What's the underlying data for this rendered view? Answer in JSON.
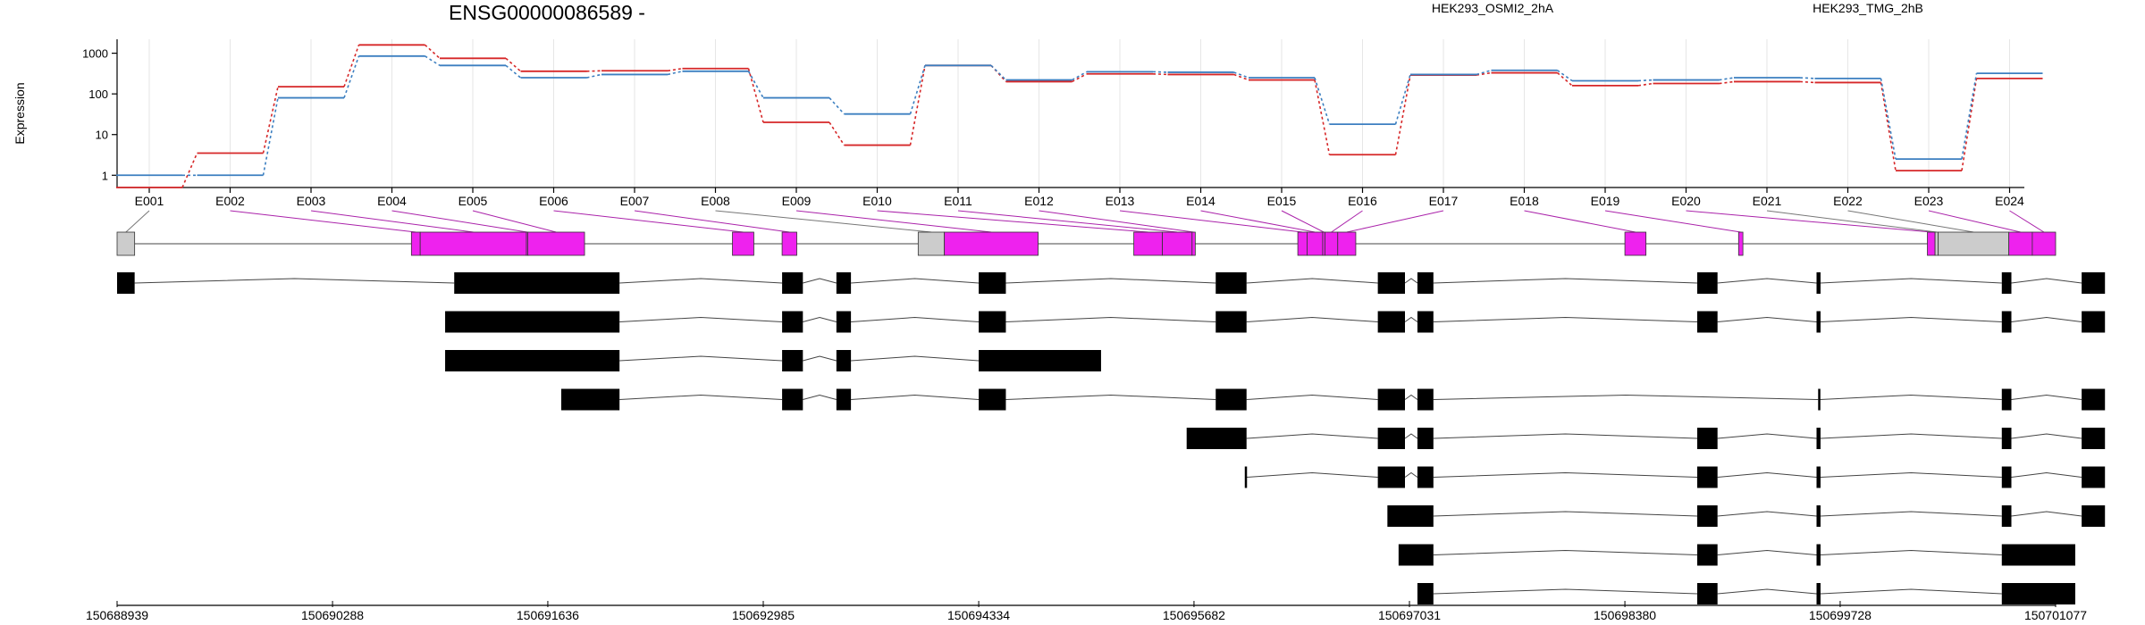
{
  "chart_data": {
    "type": "line",
    "title": "ENSG00000086589 -",
    "ylabel": "Expression",
    "yscale": "log",
    "ylim": [
      0.5,
      2200
    ],
    "y_ticks": [
      "1",
      "10",
      "100",
      "1000"
    ],
    "y_tick_values": [
      1,
      10,
      100,
      1000
    ],
    "grid": "vertical, at exon centres",
    "legend_placement": "top-right",
    "colors": {
      "series_a": "#d62728",
      "series_b": "#3c7fc0",
      "exon_highlight": "#ee22ee",
      "exon_other": "#cccccc",
      "transcript_block": "#000000",
      "connector": "#aa22aa"
    },
    "categories": [
      "E001",
      "E002",
      "E003",
      "E004",
      "E005",
      "E006",
      "E007",
      "E008",
      "E009",
      "E010",
      "E011",
      "E012",
      "E013",
      "E014",
      "E015",
      "E016",
      "E017",
      "E018",
      "E019",
      "E020",
      "E021",
      "E022",
      "E023",
      "E024"
    ],
    "series": [
      {
        "name": "HEK293_OSMI2_2hA",
        "color": "#d62728",
        "values": [
          0.5,
          3.5,
          150,
          1600,
          750,
          360,
          370,
          420,
          20,
          5.5,
          500,
          200,
          310,
          300,
          220,
          3.2,
          290,
          330,
          160,
          180,
          200,
          190,
          1.3,
          240
        ]
      },
      {
        "name": "HEK293_TMG_2hB",
        "color": "#3c7fc0",
        "values": [
          1.0,
          1.0,
          80,
          850,
          500,
          250,
          300,
          360,
          80,
          32,
          500,
          220,
          350,
          340,
          250,
          18,
          300,
          380,
          210,
          220,
          250,
          240,
          2.5,
          320
        ]
      }
    ],
    "genomic_coordinates": [
      "150688939",
      "150690288",
      "150691636",
      "150692985",
      "150694334",
      "150695682",
      "150697031",
      "150698380",
      "150699728",
      "150701077"
    ],
    "gene_start": 150688939,
    "gene_end": 150701077,
    "exons": [
      {
        "id": "E001",
        "start": 150688939,
        "end": 150689049,
        "highlight": false
      },
      {
        "id": "E002",
        "start": 150690782,
        "end": 150690837,
        "highlight": true
      },
      {
        "id": "E003",
        "start": 150690837,
        "end": 150691502,
        "highlight": true
      },
      {
        "id": "E004",
        "start": 150691502,
        "end": 150691510,
        "highlight": true
      },
      {
        "id": "E005",
        "start": 150691510,
        "end": 150691866,
        "highlight": true
      },
      {
        "id": "E006",
        "start": 150692792,
        "end": 150692926,
        "highlight": true
      },
      {
        "id": "E007",
        "start": 150693103,
        "end": 150693195,
        "highlight": true
      },
      {
        "id": "E008",
        "start": 150693955,
        "end": 150694119,
        "highlight": false
      },
      {
        "id": "E009",
        "start": 150694119,
        "end": 150694706,
        "highlight": true
      },
      {
        "id": "E010",
        "start": 150695305,
        "end": 150695484,
        "highlight": true
      },
      {
        "id": "E011",
        "start": 150695484,
        "end": 150695670,
        "highlight": true
      },
      {
        "id": "E012",
        "start": 150695670,
        "end": 150695690,
        "highlight": true
      },
      {
        "id": "E013",
        "start": 150696332,
        "end": 150696390,
        "highlight": true
      },
      {
        "id": "E014",
        "start": 150696390,
        "end": 150696488,
        "highlight": true
      },
      {
        "id": "E015",
        "start": 150696488,
        "end": 150696502,
        "highlight": true
      },
      {
        "id": "E016",
        "start": 150696502,
        "end": 150696582,
        "highlight": true
      },
      {
        "id": "E017",
        "start": 150696582,
        "end": 150696695,
        "highlight": true
      },
      {
        "id": "E018",
        "start": 150698380,
        "end": 150698512,
        "highlight": true
      },
      {
        "id": "E019",
        "start": 150699092,
        "end": 150699119,
        "highlight": true
      },
      {
        "id": "E020",
        "start": 150700274,
        "end": 150700322,
        "highlight": true
      },
      {
        "id": "E021",
        "start": 150700322,
        "end": 150700342,
        "highlight": false
      },
      {
        "id": "E022",
        "start": 150700342,
        "end": 150700784,
        "highlight": false
      },
      {
        "id": "E023",
        "start": 150700784,
        "end": 150700931,
        "highlight": true
      },
      {
        "id": "E024",
        "start": 150700931,
        "end": 150701077,
        "highlight": true
      }
    ],
    "transcripts": [
      [
        [
          150688939,
          150689049
        ],
        [
          150691050,
          150692085
        ],
        [
          150693103,
          150693233
        ],
        [
          150693443,
          150693534
        ],
        [
          150694334,
          150694504
        ],
        [
          150695818,
          150696011
        ],
        [
          150696833,
          150697003
        ],
        [
          150697081,
          150697181
        ],
        [
          150698833,
          150698960
        ],
        [
          150699580,
          150699605
        ],
        [
          150700740,
          150700800
        ],
        [
          150701240,
          150701386
        ]
      ],
      [
        [
          150690993,
          150692085
        ],
        [
          150693103,
          150693233
        ],
        [
          150693443,
          150693534
        ],
        [
          150694334,
          150694504
        ],
        [
          150695818,
          150696011
        ],
        [
          150696833,
          150697003
        ],
        [
          150697081,
          150697181
        ],
        [
          150698833,
          150698960
        ],
        [
          150699580,
          150699605
        ],
        [
          150700740,
          150700800
        ],
        [
          150701240,
          150701386
        ]
      ],
      [
        [
          150690993,
          150692085
        ],
        [
          150693103,
          150693233
        ],
        [
          150693443,
          150693534
        ],
        [
          150694334,
          150695100
        ]
      ],
      [
        [
          150691720,
          150692085
        ],
        [
          150693103,
          150693233
        ],
        [
          150693443,
          150693534
        ],
        [
          150694334,
          150694504
        ],
        [
          150695818,
          150696011
        ],
        [
          150696833,
          150697003
        ],
        [
          150697081,
          150697181
        ],
        [
          150699590,
          150699602
        ],
        [
          150700740,
          150700800
        ],
        [
          150701240,
          150701386
        ]
      ],
      [
        [
          150695636,
          150696011
        ],
        [
          150696833,
          150697003
        ],
        [
          150697081,
          150697181
        ],
        [
          150698833,
          150698960
        ],
        [
          150699580,
          150699605
        ],
        [
          150700740,
          150700800
        ],
        [
          150701240,
          150701386
        ]
      ],
      [
        [
          150696000,
          150696011
        ],
        [
          150696833,
          150697003
        ],
        [
          150697081,
          150697181
        ],
        [
          150698833,
          150698960
        ],
        [
          150699580,
          150699605
        ],
        [
          150700740,
          150700800
        ],
        [
          150701240,
          150701386
        ]
      ],
      [
        [
          150696893,
          150697181
        ],
        [
          150698833,
          150698960
        ],
        [
          150699580,
          150699605
        ],
        [
          150700740,
          150700800
        ],
        [
          150701240,
          150701386
        ]
      ],
      [
        [
          150696963,
          150697181
        ],
        [
          150698833,
          150698960
        ],
        [
          150699580,
          150699605
        ],
        [
          150700740,
          150701200
        ]
      ],
      [
        [
          150697081,
          150697181
        ],
        [
          150698833,
          150698960
        ],
        [
          150699580,
          150699605
        ],
        [
          150700740,
          150701200
        ]
      ]
    ]
  }
}
